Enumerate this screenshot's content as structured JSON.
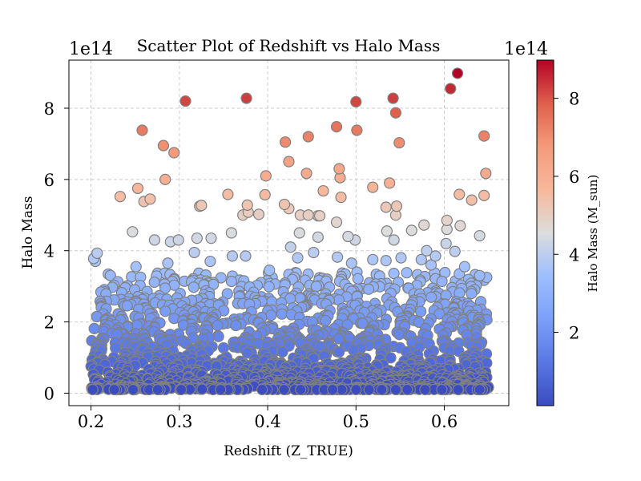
{
  "chart_data": {
    "type": "scatter",
    "title": "Scatter Plot of Redshift vs Halo Mass",
    "xlabel": "Redshift (Z_TRUE)",
    "ylabel": "Halo Mass",
    "offset_text": "1e14",
    "colorbar_label": "Halo Mass (M_sun)",
    "colorbar_offset_text": "1e14",
    "colormap": "coolwarm",
    "xlim": [
      0.175,
      0.673
    ],
    "ylim": [
      -0.35,
      9.35
    ],
    "x_ticks": [
      "0.2",
      "0.3",
      "0.4",
      "0.5",
      "0.6"
    ],
    "x_tick_values": [
      0.2,
      0.3,
      0.4,
      0.5,
      0.6
    ],
    "y_ticks": [
      "0",
      "2",
      "4",
      "6",
      "8"
    ],
    "y_tick_values": [
      0,
      2,
      4,
      6,
      8
    ],
    "colorbar_ticks": [
      "2",
      "4",
      "6",
      "8"
    ],
    "colorbar_tick_values": [
      2,
      4,
      6,
      8
    ],
    "colorbar_range": [
      0.12,
      8.98
    ],
    "grid": true,
    "marker_edge_color": "#808080",
    "dense_x_range": [
      0.2,
      0.65
    ],
    "dense_y_range": [
      0.1,
      3.4
    ],
    "points": [
      [
        0.615,
        8.98
      ],
      [
        0.607,
        8.55
      ],
      [
        0.307,
        8.2
      ],
      [
        0.376,
        8.28
      ],
      [
        0.5,
        8.18
      ],
      [
        0.542,
        8.28
      ],
      [
        0.545,
        7.87
      ],
      [
        0.258,
        7.38
      ],
      [
        0.446,
        7.2
      ],
      [
        0.478,
        7.48
      ],
      [
        0.501,
        7.38
      ],
      [
        0.549,
        7.03
      ],
      [
        0.645,
        7.22
      ],
      [
        0.42,
        7.05
      ],
      [
        0.282,
        6.95
      ],
      [
        0.294,
        6.75
      ],
      [
        0.424,
        6.5
      ],
      [
        0.444,
        6.17
      ],
      [
        0.481,
        6.3
      ],
      [
        0.482,
        6.05
      ],
      [
        0.398,
        6.1
      ],
      [
        0.284,
        6.0
      ],
      [
        0.647,
        6.17
      ],
      [
        0.233,
        5.52
      ],
      [
        0.253,
        5.75
      ],
      [
        0.26,
        5.38
      ],
      [
        0.267,
        5.45
      ],
      [
        0.355,
        5.58
      ],
      [
        0.397,
        5.57
      ],
      [
        0.463,
        5.68
      ],
      [
        0.483,
        5.5
      ],
      [
        0.519,
        5.78
      ],
      [
        0.538,
        5.9
      ],
      [
        0.617,
        5.58
      ],
      [
        0.645,
        5.55
      ],
      [
        0.631,
        5.42
      ],
      [
        0.323,
        5.25
      ],
      [
        0.325,
        5.27
      ],
      [
        0.372,
        5.0
      ],
      [
        0.377,
        5.28
      ],
      [
        0.378,
        5.08
      ],
      [
        0.419,
        5.3
      ],
      [
        0.424,
        5.18
      ],
      [
        0.437,
        5.0
      ],
      [
        0.446,
        5.0
      ],
      [
        0.457,
        4.98
      ],
      [
        0.459,
        4.98
      ],
      [
        0.478,
        4.8
      ],
      [
        0.534,
        5.22
      ],
      [
        0.546,
        5.25
      ],
      [
        0.545,
        5.0
      ],
      [
        0.577,
        4.72
      ],
      [
        0.603,
        4.85
      ],
      [
        0.618,
        4.7
      ],
      [
        0.603,
        4.6
      ],
      [
        0.247,
        4.53
      ],
      [
        0.272,
        4.3
      ],
      [
        0.29,
        4.25
      ],
      [
        0.299,
        4.3
      ],
      [
        0.32,
        4.35
      ],
      [
        0.336,
        4.35
      ],
      [
        0.359,
        4.5
      ],
      [
        0.39,
        5.02
      ],
      [
        0.426,
        4.1
      ],
      [
        0.436,
        4.5
      ],
      [
        0.457,
        4.38
      ],
      [
        0.491,
        4.4
      ],
      [
        0.499,
        4.3
      ],
      [
        0.535,
        4.55
      ],
      [
        0.543,
        4.3
      ],
      [
        0.563,
        4.57
      ],
      [
        0.602,
        4.2
      ],
      [
        0.64,
        4.42
      ],
      [
        0.203,
        3.78
      ],
      [
        0.207,
        3.93
      ],
      [
        0.205,
        3.7
      ],
      [
        0.251,
        3.55
      ],
      [
        0.287,
        3.65
      ],
      [
        0.317,
        3.95
      ],
      [
        0.335,
        3.7
      ],
      [
        0.36,
        3.85
      ],
      [
        0.375,
        3.85
      ],
      [
        0.402,
        3.45
      ],
      [
        0.434,
        3.8
      ],
      [
        0.452,
        3.95
      ],
      [
        0.479,
        3.82
      ],
      [
        0.495,
        3.65
      ],
      [
        0.519,
        3.75
      ],
      [
        0.534,
        3.72
      ],
      [
        0.551,
        3.8
      ],
      [
        0.574,
        3.75
      ],
      [
        0.59,
        3.85
      ],
      [
        0.623,
        3.55
      ],
      [
        0.64,
        3.3
      ],
      [
        0.648,
        3.25
      ],
      [
        0.612,
        3.98
      ],
      [
        0.58,
        4.0
      ],
      [
        0.585,
        3.6
      ],
      [
        0.617,
        3.35
      ]
    ]
  }
}
